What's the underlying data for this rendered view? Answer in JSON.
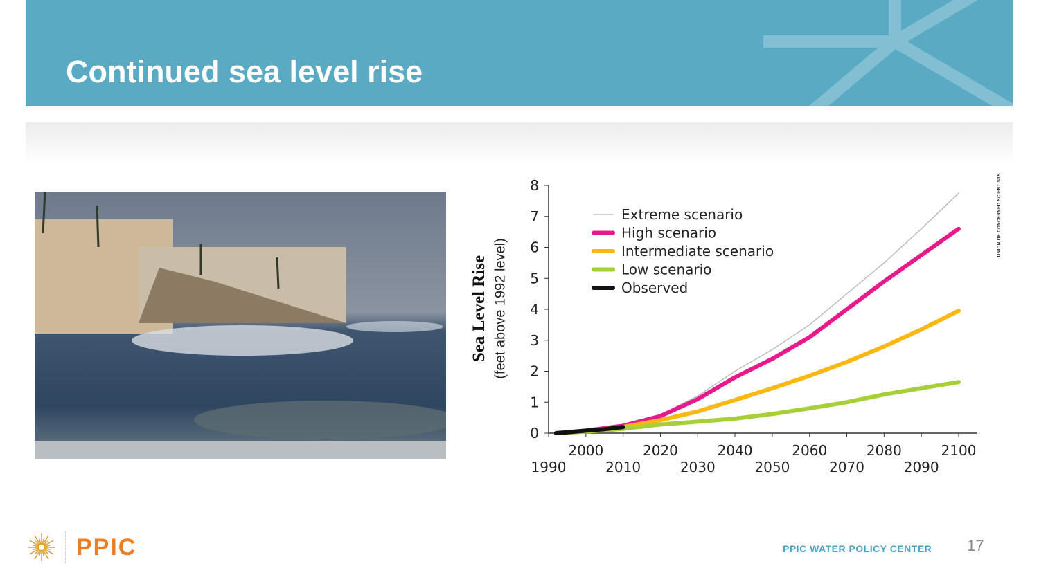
{
  "slide": {
    "title": "Continued sea level rise",
    "page_number": "17",
    "footer": "PPIC WATER POLICY CENTER",
    "logo": "PPIC",
    "credit": "UNION OF CONCERNED SCIENTISTS",
    "banner_color": "#5aaac4"
  },
  "chart_data": {
    "type": "line",
    "ylabel": "Sea Level Rise",
    "ylabel_sub": "(feet above 1992 level)",
    "ylim": [
      0,
      8
    ],
    "yticks": [
      0,
      1,
      2,
      3,
      4,
      5,
      6,
      7,
      8
    ],
    "xlim": [
      1990,
      2100
    ],
    "xticks_upper": [
      2000,
      2020,
      2040,
      2060,
      2080,
      2100
    ],
    "xticks_lower": [
      1990,
      2010,
      2030,
      2050,
      2070,
      2090
    ],
    "legend_position": "top-left",
    "x": [
      1992,
      2000,
      2010,
      2020,
      2030,
      2040,
      2050,
      2060,
      2070,
      2080,
      2090,
      2100
    ],
    "series": [
      {
        "name": "Extreme scenario",
        "color": "#bdbdbd",
        "values": [
          0,
          0.08,
          0.25,
          0.6,
          1.2,
          2.0,
          2.7,
          3.5,
          4.5,
          5.5,
          6.6,
          7.75
        ]
      },
      {
        "name": "High scenario",
        "color": "#e8198b",
        "values": [
          0,
          0.08,
          0.24,
          0.55,
          1.1,
          1.8,
          2.4,
          3.1,
          4.0,
          4.9,
          5.75,
          6.6
        ]
      },
      {
        "name": "Intermediate scenario",
        "color": "#fbb813",
        "values": [
          0,
          0.07,
          0.2,
          0.42,
          0.7,
          1.07,
          1.45,
          1.85,
          2.3,
          2.8,
          3.35,
          3.95
        ]
      },
      {
        "name": "Low scenario",
        "color": "#a6cf38",
        "values": [
          0,
          0.05,
          0.14,
          0.28,
          0.37,
          0.47,
          0.62,
          0.8,
          1.0,
          1.25,
          1.45,
          1.65
        ]
      },
      {
        "name": "Observed",
        "color": "#111111",
        "x": [
          1992,
          1995,
          2000,
          2005,
          2010
        ],
        "values": [
          0,
          0.03,
          0.08,
          0.13,
          0.2
        ]
      }
    ]
  }
}
